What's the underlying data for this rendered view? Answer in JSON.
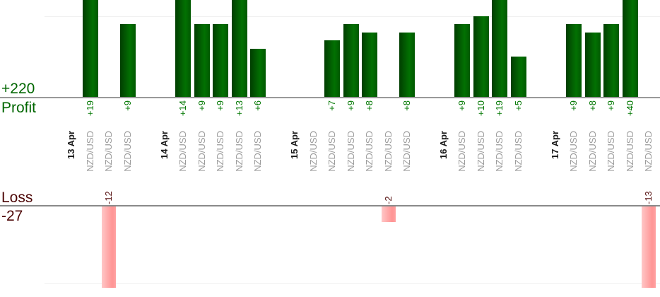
{
  "axes": {
    "profit_total": "+220",
    "profit_label": "Profit",
    "loss_label": "Loss",
    "loss_total": "-27"
  },
  "chart_data": {
    "type": "bar",
    "orientation": "vertical",
    "description": "Daily trade profit/loss bars per instrument; green bars above the Profit baseline, pink bars below the Loss baseline; bars taller than the visible area are clipped",
    "series_symbol": "NZD/USD",
    "groups": [
      {
        "date": "13 Apr",
        "trades": [
          {
            "symbol": "NZD/USD",
            "value": 19,
            "label": "+19"
          },
          {
            "symbol": "NZD/USD",
            "value": -12,
            "label": "-12"
          },
          {
            "symbol": "NZD/USD",
            "value": 9,
            "label": "+9"
          }
        ]
      },
      {
        "date": "14 Apr",
        "trades": [
          {
            "symbol": "NZD/USD",
            "value": 14,
            "label": "+14"
          },
          {
            "symbol": "NZD/USD",
            "value": 9,
            "label": "+9"
          },
          {
            "symbol": "NZD/USD",
            "value": 9,
            "label": "+9"
          },
          {
            "symbol": "NZD/USD",
            "value": 13,
            "label": "+13"
          },
          {
            "symbol": "NZD/USD",
            "value": 6,
            "label": "+6"
          }
        ]
      },
      {
        "date": "15 Apr",
        "trades": [
          {
            "symbol": "NZD/USD",
            "value": 0,
            "label": ""
          },
          {
            "symbol": "NZD/USD",
            "value": 7,
            "label": "+7"
          },
          {
            "symbol": "NZD/USD",
            "value": 9,
            "label": "+9"
          },
          {
            "symbol": "NZD/USD",
            "value": 8,
            "label": "+8"
          },
          {
            "symbol": "NZD/USD",
            "value": -2,
            "label": "-2"
          },
          {
            "symbol": "NZD/USD",
            "value": 8,
            "label": "+8"
          }
        ]
      },
      {
        "date": "16 Apr",
        "trades": [
          {
            "symbol": "NZD/USD",
            "value": 9,
            "label": "+9"
          },
          {
            "symbol": "NZD/USD",
            "value": 10,
            "label": "+10"
          },
          {
            "symbol": "NZD/USD",
            "value": 19,
            "label": "+19"
          },
          {
            "symbol": "NZD/USD",
            "value": 5,
            "label": "+5"
          }
        ]
      },
      {
        "date": "17 Apr",
        "trades": [
          {
            "symbol": "NZD/USD",
            "value": 9,
            "label": "+9"
          },
          {
            "symbol": "NZD/USD",
            "value": 8,
            "label": "+8"
          },
          {
            "symbol": "NZD/USD",
            "value": 9,
            "label": "+9"
          },
          {
            "symbol": "NZD/USD",
            "value": 40,
            "label": "+40"
          },
          {
            "symbol": "NZD/USD",
            "value": -13,
            "label": "-13"
          }
        ]
      }
    ],
    "totals": {
      "profit": "+220",
      "loss": "-27"
    },
    "colors": {
      "profit_bar": "#027102",
      "profit_text": "#007700",
      "profit_axis_text": "#006600",
      "loss_bar": "#ff9494",
      "loss_text": "#551010",
      "loss_axis_text": "#4c0505",
      "date_text": "#1a1a1a",
      "symbol_text": "#9b9b9b",
      "baseline": "#999999",
      "gridline": "#f0f0f0"
    },
    "legend": "none",
    "grid": "faint horizontal gridlines"
  }
}
